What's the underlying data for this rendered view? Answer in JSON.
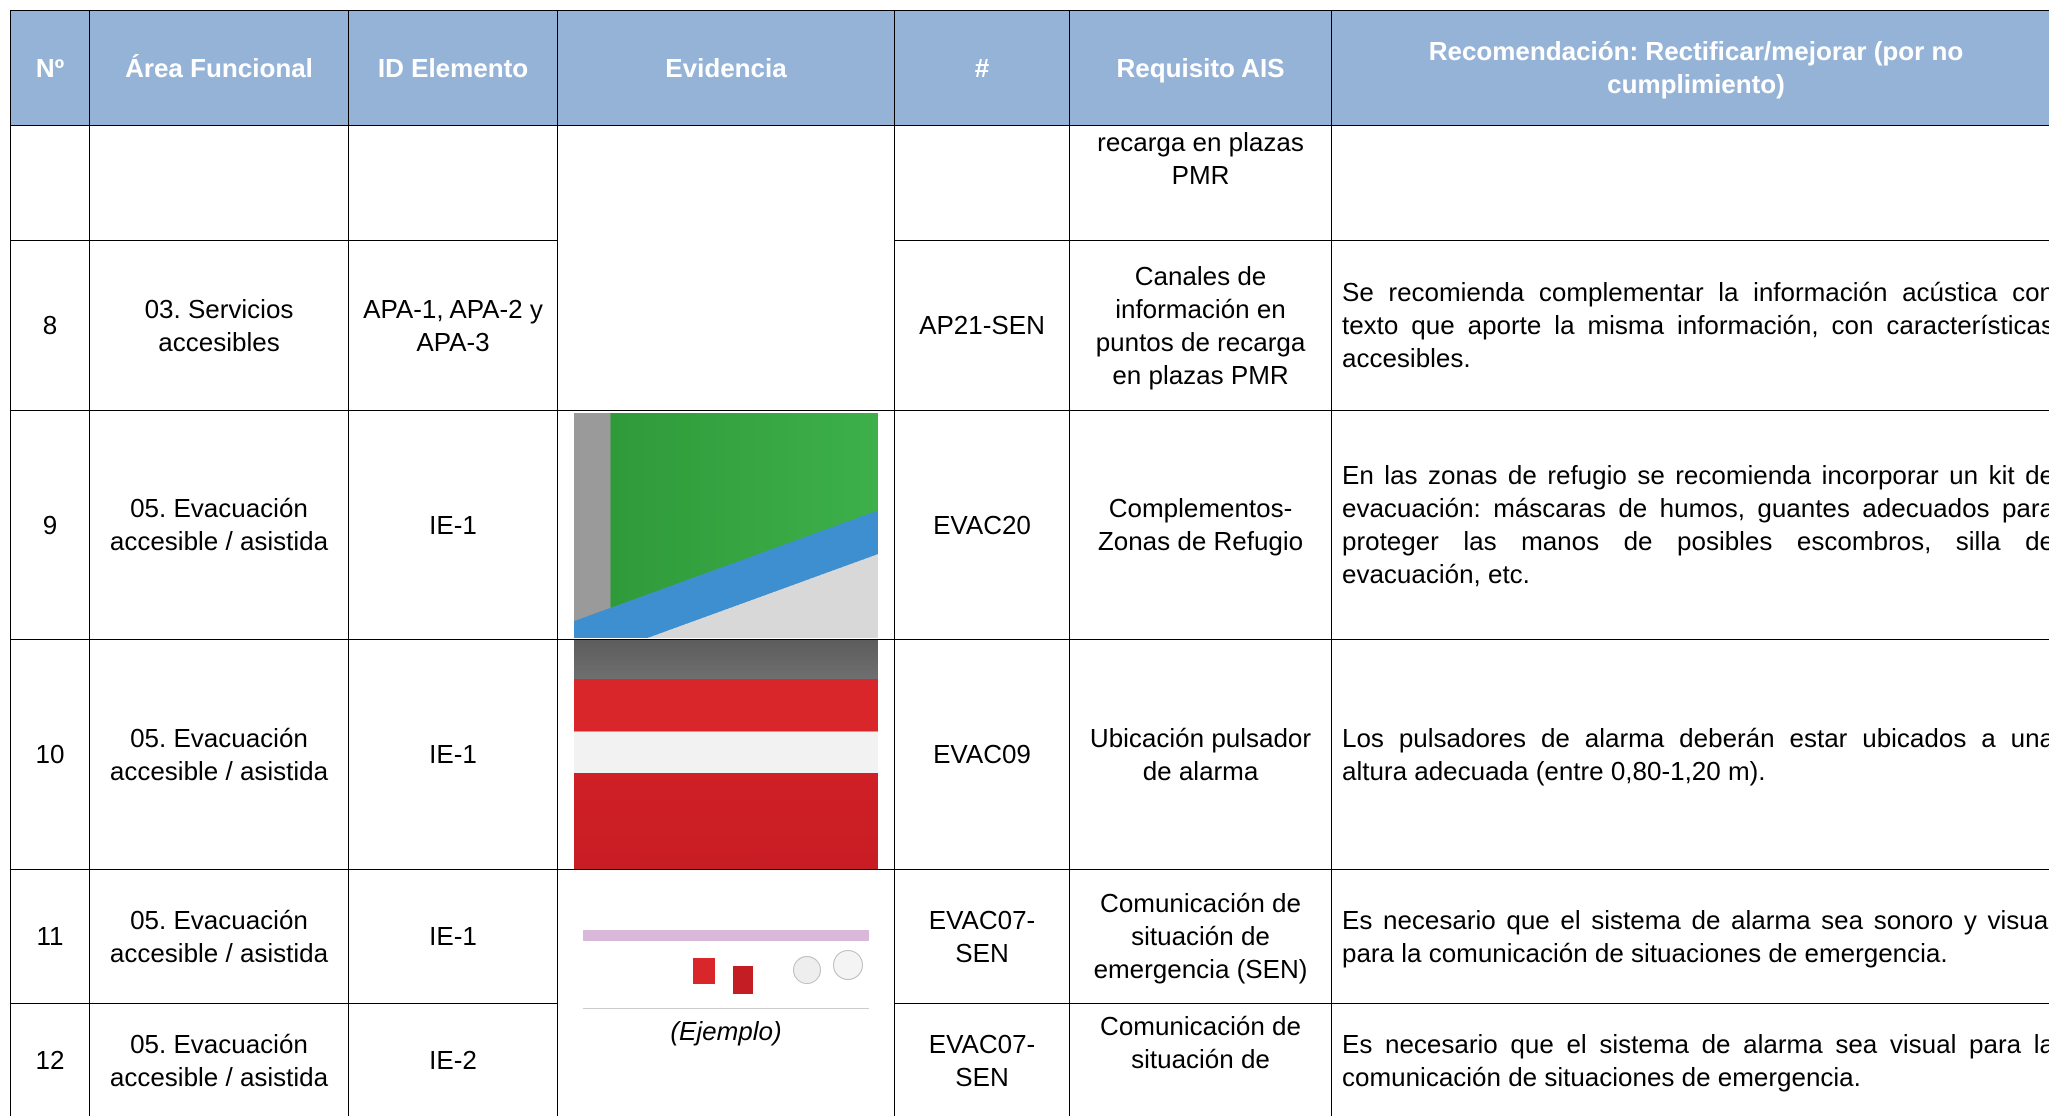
{
  "table": {
    "header": [
      "Nº",
      "Área Funcional",
      "ID Elemento",
      "Evidencia",
      "#",
      "Requisito AIS",
      "Recomendación: Rectificar/mejorar (por no cumplimiento)"
    ],
    "rows": [
      {
        "requisito": "recarga en plazas PMR"
      },
      {
        "no": "8",
        "area": "03. Servicios accesibles",
        "id": "APA-1, APA-2 y APA-3",
        "code": "AP21-SEN",
        "requisito": "Canales de información en puntos de recarga en plazas PMR",
        "recomendacion": "Se recomienda complementar la información acústica con texto que aporte la misma información, con características accesibles."
      },
      {
        "no": "9",
        "area": "05. Evacuación accesible / asistida",
        "id": "IE-1",
        "code": "EVAC20",
        "requisito": "Complementos-Zonas de Refugio",
        "recomendacion": "En las zonas de refugio se recomienda incorporar un kit de evacuación: máscaras de humos, guantes adecuados para proteger las manos de posibles escombros, silla de evacuación, etc."
      },
      {
        "no": "10",
        "area": "05. Evacuación accesible / asistida",
        "id": "IE-1",
        "code": "EVAC09",
        "requisito": "Ubicación pulsador de alarma",
        "recomendacion": "Los pulsadores de alarma deberán estar ubicados a una altura adecuada (entre 0,80-1,20 m)."
      },
      {
        "no": "11",
        "area": "05. Evacuación accesible / asistida",
        "id": "IE-1",
        "evidencia": "(Ejemplo)",
        "code": "EVAC07-SEN",
        "requisito": "Comunicación de situación de emergencia (SEN)",
        "recomendacion": "Es necesario que el sistema de alarma sea sonoro y visual para la comunicación de situaciones de emergencia."
      },
      {
        "no": "12",
        "area": "05. Evacuación accesible / asistida",
        "id": "IE-2",
        "code": "EVAC07-SEN",
        "requisito": "Comunicación de situación de",
        "recomendacion": "Es necesario que el sistema de alarma sea visual para la comunicación de situaciones de emergencia."
      }
    ]
  }
}
